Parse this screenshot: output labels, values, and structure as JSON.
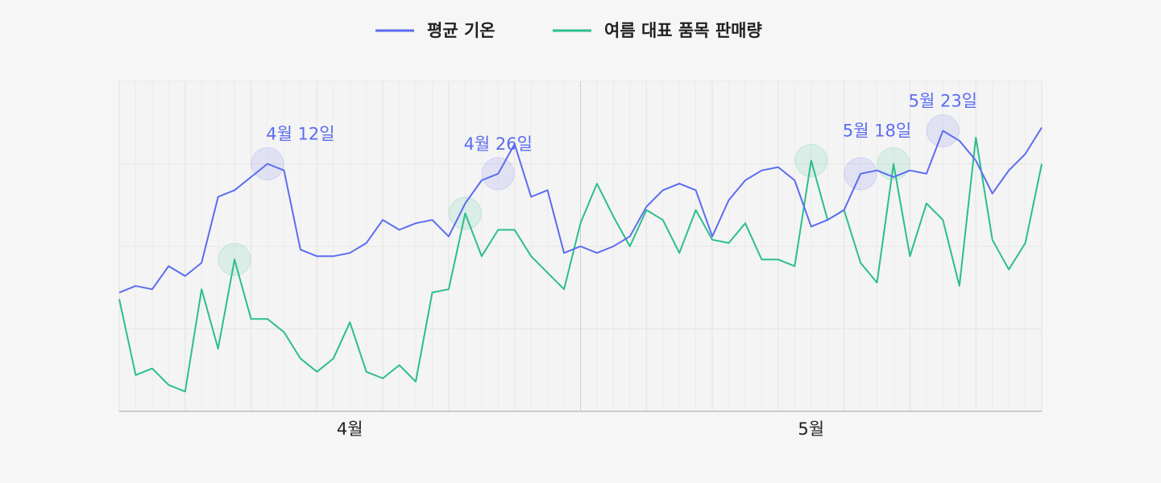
{
  "chart_data": {
    "type": "line",
    "x_start": "4월 1일",
    "x_end": "5월 26일",
    "x_ticks": [
      {
        "day_index": 14,
        "label": "4월"
      },
      {
        "day_index": 42,
        "label": "5월"
      }
    ],
    "month_divider_index": 28,
    "ylim": [
      0,
      100
    ],
    "grid": true,
    "legend_position": "top",
    "series": [
      {
        "name": "평균 기온",
        "color": "#5b6cf0",
        "values": [
          36,
          38,
          37,
          44,
          41,
          45,
          65,
          67,
          71,
          75,
          73,
          49,
          47,
          47,
          48,
          51,
          58,
          55,
          57,
          58,
          53,
          63,
          70,
          72,
          81,
          65,
          67,
          48,
          50,
          48,
          50,
          53,
          62,
          67,
          69,
          67,
          53,
          64,
          70,
          73,
          74,
          70,
          56,
          58,
          61,
          72,
          73,
          71,
          73,
          72,
          85,
          82,
          76,
          66,
          73,
          78,
          86
        ]
      },
      {
        "name": "여름 대표 품목 판매량",
        "color": "#2bbf8a",
        "values": [
          34,
          11,
          13,
          8,
          6,
          37,
          19,
          46,
          28,
          28,
          24,
          16,
          12,
          16,
          27,
          12,
          10,
          14,
          9,
          36,
          37,
          60,
          47,
          55,
          55,
          47,
          42,
          37,
          57,
          69,
          59,
          50,
          61,
          58,
          48,
          61,
          52,
          51,
          57,
          46,
          46,
          44,
          76,
          58,
          61,
          45,
          39,
          75,
          47,
          63,
          58,
          38,
          83,
          52,
          43,
          51,
          75
        ]
      }
    ],
    "annotations": [
      {
        "label": "4월 12일",
        "day_index": 11,
        "color": "#5b6cf0",
        "markers": [
          {
            "series": 0,
            "day_index": 9
          },
          {
            "series": 1,
            "day_index": 7
          }
        ]
      },
      {
        "label": "4월 26일",
        "day_index": 23,
        "color": "#5b6cf0",
        "markers": [
          {
            "series": 0,
            "day_index": 23
          },
          {
            "series": 1,
            "day_index": 21
          }
        ]
      },
      {
        "label": "5월 18일",
        "day_index": 46,
        "color": "#5b6cf0",
        "markers": [
          {
            "series": 0,
            "day_index": 45
          },
          {
            "series": 1,
            "day_index": 42
          },
          {
            "series": 1,
            "day_index": 47
          }
        ]
      },
      {
        "label": "5월 23일",
        "day_index": 50,
        "color": "#5b6cf0",
        "markers": [
          {
            "series": 0,
            "day_index": 50
          }
        ]
      }
    ]
  }
}
